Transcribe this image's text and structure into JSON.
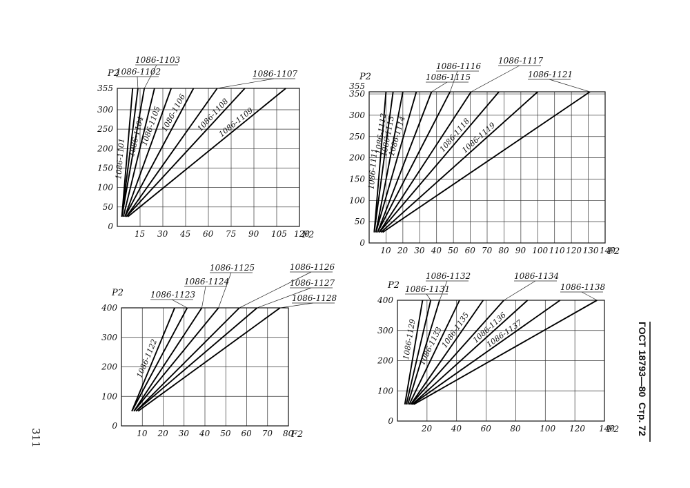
{
  "page": {
    "page_number": "311",
    "header_std": "ГОСТ 18793—80",
    "header_page": "Стр. 72"
  },
  "chart_data": [
    {
      "id": "c1",
      "type": "line",
      "xlabel": "F2",
      "ylabel": "P2",
      "xlim": [
        0,
        120
      ],
      "ylim": [
        0,
        355
      ],
      "xticks": [
        15,
        30,
        45,
        60,
        75,
        90,
        105,
        120
      ],
      "yticks": [
        0,
        50,
        100,
        150,
        200,
        250,
        300,
        355
      ],
      "ytick_labels": [
        "0",
        "50",
        "100",
        "150",
        "200",
        "250",
        "300",
        "355"
      ],
      "series": [
        {
          "name": "1086-1101",
          "x": [
            3,
            10.1
          ],
          "y": [
            25,
            355
          ]
        },
        {
          "name": "1086-1102",
          "x": [
            3,
            13.6
          ],
          "y": [
            25,
            355
          ]
        },
        {
          "name": "1086-1103",
          "x": [
            3,
            17.8
          ],
          "y": [
            25,
            355
          ]
        },
        {
          "name": "1086-1104",
          "x": [
            4,
            24.5
          ],
          "y": [
            25,
            355
          ]
        },
        {
          "name": "1086-1105",
          "x": [
            5,
            35.5
          ],
          "y": [
            25,
            355
          ]
        },
        {
          "name": "1086-1106",
          "x": [
            5,
            50.2
          ],
          "y": [
            25,
            355
          ]
        },
        {
          "name": "1086-1107",
          "x": [
            6,
            65.8
          ],
          "y": [
            25,
            355
          ]
        },
        {
          "name": "1086-1108",
          "x": [
            6,
            84
          ],
          "y": [
            25,
            355
          ]
        },
        {
          "name": "1086-1109",
          "x": [
            7,
            111
          ],
          "y": [
            25,
            355
          ]
        }
      ],
      "labels_top": [
        {
          "text": "1086-1103",
          "series": 2
        },
        {
          "text": "1086-1102",
          "series": 1
        },
        {
          "text": "1086-1107",
          "series": 6
        }
      ],
      "labels_inline": [
        {
          "text": "1086-1101",
          "series": 0,
          "t": 0.45
        },
        {
          "text": "1086-1104",
          "series": 3,
          "t": 0.62
        },
        {
          "text": "1086-1105",
          "series": 4,
          "t": 0.7
        },
        {
          "text": "1086-1106",
          "series": 5,
          "t": 0.8
        },
        {
          "text": "1086-1108",
          "series": 7,
          "t": 0.78
        },
        {
          "text": "1086-1109",
          "series": 8,
          "t": 0.72
        }
      ]
    },
    {
      "id": "c2",
      "type": "line",
      "xlabel": "F2",
      "ylabel": "P2",
      "xlim": [
        0,
        140
      ],
      "ylim": [
        0,
        355
      ],
      "xticks": [
        10,
        20,
        30,
        40,
        50,
        60,
        70,
        80,
        90,
        100,
        110,
        120,
        130,
        140
      ],
      "yticks": [
        0,
        50,
        100,
        150,
        200,
        250,
        300,
        350
      ],
      "ytick_labels": [
        "0",
        "50",
        "100",
        "150",
        "200",
        "250",
        "300",
        "350"
      ],
      "ytop_label": "355",
      "series": [
        {
          "name": "1086-1111",
          "x": [
            3,
            10
          ],
          "y": [
            25,
            355
          ]
        },
        {
          "name": "1086-1112",
          "x": [
            3,
            14.2
          ],
          "y": [
            25,
            355
          ]
        },
        {
          "name": "1086-1113",
          "x": [
            4,
            20
          ],
          "y": [
            25,
            355
          ]
        },
        {
          "name": "1086-1114",
          "x": [
            4,
            28
          ],
          "y": [
            25,
            355
          ]
        },
        {
          "name": "1086-1115",
          "x": [
            5,
            37
          ],
          "y": [
            25,
            355
          ]
        },
        {
          "name": "1086-1116",
          "x": [
            5,
            48
          ],
          "y": [
            25,
            355
          ]
        },
        {
          "name": "1086-1117",
          "x": [
            6,
            60.5
          ],
          "y": [
            25,
            355
          ]
        },
        {
          "name": "1086-1118",
          "x": [
            6,
            77
          ],
          "y": [
            25,
            355
          ]
        },
        {
          "name": "1086-1119",
          "x": [
            7,
            100
          ],
          "y": [
            25,
            355
          ]
        },
        {
          "name": "1086-1121",
          "x": [
            8,
            131
          ],
          "y": [
            25,
            355
          ]
        }
      ],
      "labels_top": [
        {
          "text": "1086-1116",
          "series": 5
        },
        {
          "text": "1086-1115",
          "series": 4
        },
        {
          "text": "1086-1117",
          "series": 6
        },
        {
          "text": "1086-1121",
          "series": 9
        }
      ],
      "labels_inline": [
        {
          "text": "1086-1111",
          "series": 0,
          "t": 0.45
        },
        {
          "text": "1086-1112",
          "series": 1,
          "t": 0.7
        },
        {
          "text": "1086-1113",
          "series": 2,
          "t": 0.68
        },
        {
          "text": "1086-1114",
          "series": 3,
          "t": 0.68
        },
        {
          "text": "1086-1118",
          "series": 7,
          "t": 0.68
        },
        {
          "text": "1086-1119",
          "series": 8,
          "t": 0.66
        }
      ]
    },
    {
      "id": "c3",
      "type": "line",
      "xlabel": "F2",
      "ylabel": "P2",
      "xlim": [
        0,
        80
      ],
      "ylim": [
        0,
        400
      ],
      "xticks": [
        10,
        20,
        30,
        40,
        50,
        60,
        70,
        80
      ],
      "yticks": [
        0,
        100,
        200,
        300,
        400
      ],
      "ytick_labels": [
        "0",
        "100",
        "200",
        "300",
        "400"
      ],
      "series": [
        {
          "name": "1086-1122",
          "x": [
            5,
            25.5
          ],
          "y": [
            50,
            400
          ]
        },
        {
          "name": "1086-1123",
          "x": [
            5,
            31.5
          ],
          "y": [
            50,
            400
          ]
        },
        {
          "name": "1086-1124",
          "x": [
            6,
            38.5
          ],
          "y": [
            50,
            400
          ]
        },
        {
          "name": "1086-1125",
          "x": [
            6,
            46.5
          ],
          "y": [
            50,
            400
          ]
        },
        {
          "name": "1086-1126",
          "x": [
            7,
            56.5
          ],
          "y": [
            50,
            400
          ]
        },
        {
          "name": "1086-1127",
          "x": [
            7,
            65
          ],
          "y": [
            50,
            400
          ]
        },
        {
          "name": "1086-1128",
          "x": [
            8,
            76
          ],
          "y": [
            50,
            400
          ]
        }
      ],
      "labels_top": [
        {
          "text": "1086-1125",
          "series": 3
        },
        {
          "text": "1086-1124",
          "series": 2
        },
        {
          "text": "1086-1123",
          "series": 1
        },
        {
          "text": "1086-1126",
          "series": 4
        },
        {
          "text": "1086-1127",
          "series": 5
        },
        {
          "text": "1086-1128",
          "series": 6
        }
      ],
      "labels_inline": [
        {
          "text": "1086-1122",
          "series": 0,
          "t": 0.5
        }
      ]
    },
    {
      "id": "c4",
      "type": "line",
      "xlabel": "F2",
      "ylabel": "P2",
      "xlim": [
        0,
        140
      ],
      "ylim": [
        0,
        400
      ],
      "xticks": [
        20,
        40,
        60,
        80,
        100,
        120,
        140
      ],
      "yticks": [
        0,
        100,
        200,
        300,
        400
      ],
      "ytick_labels": [
        "0",
        "100",
        "200",
        "300",
        "400"
      ],
      "series": [
        {
          "name": "1086-1129",
          "x": [
            5,
            17
          ],
          "y": [
            55,
            400
          ]
        },
        {
          "name": "1086-1131",
          "x": [
            6,
            22.5
          ],
          "y": [
            55,
            400
          ]
        },
        {
          "name": "1086-1132",
          "x": [
            7,
            28.5
          ],
          "y": [
            55,
            400
          ]
        },
        {
          "name": "1086-1133",
          "x": [
            8,
            42
          ],
          "y": [
            55,
            400
          ]
        },
        {
          "name": "1086-1135",
          "x": [
            9,
            58
          ],
          "y": [
            55,
            400
          ]
        },
        {
          "name": "1086-1134",
          "x": [
            9,
            72
          ],
          "y": [
            55,
            400
          ]
        },
        {
          "name": "1086-1136",
          "x": [
            10,
            88
          ],
          "y": [
            55,
            400
          ]
        },
        {
          "name": "1086-1137",
          "x": [
            10,
            110
          ],
          "y": [
            55,
            400
          ]
        },
        {
          "name": "1086-1138",
          "x": [
            11,
            135
          ],
          "y": [
            55,
            400
          ]
        }
      ],
      "labels_top": [
        {
          "text": "1086-1132",
          "series": 2
        },
        {
          "text": "1086-1131",
          "series": 1
        },
        {
          "text": "1086-1134",
          "series": 5
        },
        {
          "text": "1086-1138",
          "series": 8
        }
      ],
      "labels_inline": [
        {
          "text": "1086-1129",
          "series": 0,
          "t": 0.62
        },
        {
          "text": "1086-1133",
          "series": 3,
          "t": 0.55
        },
        {
          "text": "1086-1135",
          "series": 4,
          "t": 0.7
        },
        {
          "text": "1086-1136",
          "series": 6,
          "t": 0.72
        },
        {
          "text": "1086-1137",
          "series": 7,
          "t": 0.66
        }
      ]
    }
  ]
}
